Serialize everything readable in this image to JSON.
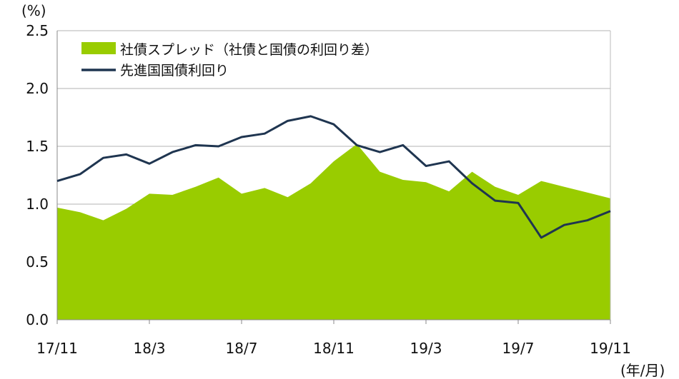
{
  "chart_data": {
    "type": "area",
    "y_unit_label": "(%)",
    "x_unit_label": "(年/月)",
    "ylim": [
      0,
      2.5
    ],
    "y_ticks": [
      0.0,
      0.5,
      1.0,
      1.5,
      2.0,
      2.5
    ],
    "y_tick_labels": [
      "0.0",
      "0.5",
      "1.0",
      "1.5",
      "2.0",
      "2.5"
    ],
    "x_tick_labels": [
      "17/11",
      "18/3",
      "18/7",
      "18/11",
      "19/3",
      "19/7",
      "19/11"
    ],
    "x_tick_positions": [
      0,
      4,
      8,
      12,
      16,
      20,
      24
    ],
    "grid": true,
    "legend_position": "top-left",
    "months": [
      "17/11",
      "17/12",
      "18/1",
      "18/2",
      "18/3",
      "18/4",
      "18/5",
      "18/6",
      "18/7",
      "18/8",
      "18/9",
      "18/10",
      "18/11",
      "18/12",
      "19/1",
      "19/2",
      "19/3",
      "19/4",
      "19/5",
      "19/6",
      "19/7",
      "19/8",
      "19/9",
      "19/10",
      "19/11"
    ],
    "series": [
      {
        "name": "社債スプレッド（社債と国債の利回り差）",
        "type": "area",
        "color": "#99cc00",
        "values": [
          0.97,
          0.93,
          0.86,
          0.96,
          1.09,
          1.08,
          1.15,
          1.23,
          1.09,
          1.14,
          1.06,
          1.18,
          1.37,
          1.52,
          1.28,
          1.21,
          1.19,
          1.11,
          1.28,
          1.15,
          1.08,
          1.2,
          1.15,
          1.1,
          1.05
        ]
      },
      {
        "name": "先進国国債利回り",
        "type": "line",
        "color": "#1f3550",
        "values": [
          1.2,
          1.26,
          1.4,
          1.43,
          1.35,
          1.45,
          1.51,
          1.5,
          1.58,
          1.61,
          1.72,
          1.76,
          1.69,
          1.51,
          1.45,
          1.51,
          1.33,
          1.37,
          1.18,
          1.03,
          1.01,
          0.71,
          0.82,
          0.86,
          0.94
        ]
      }
    ]
  }
}
